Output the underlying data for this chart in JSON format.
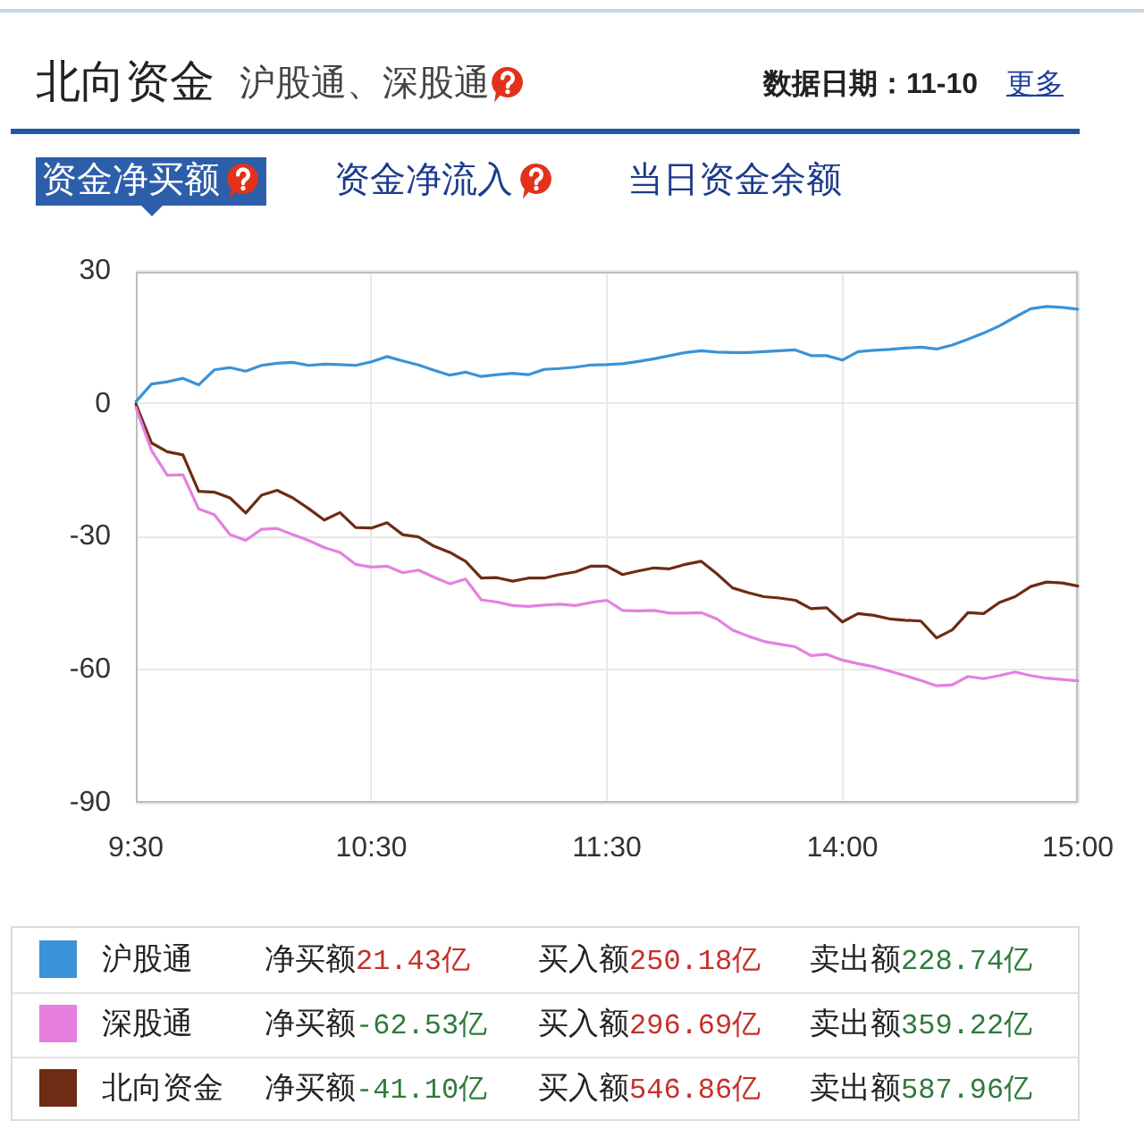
{
  "chart_data": {
    "type": "line",
    "title": "北向资金",
    "subtitle": "沪股通、深股通",
    "annotations": [
      "数据日期：11-10",
      "更多",
      "资金净买额",
      "资金净流入",
      "当日资金余额",
      "净买额21.43亿",
      "买入额250.18亿",
      "卖出额228.74亿",
      "净买额-62.53亿",
      "买入额296.69亿",
      "卖出额359.22亿",
      "净买额-41.10亿",
      "买入额546.86亿",
      "卖出额587.96亿"
    ],
    "categories": [
      "9:30",
      null,
      null,
      null,
      null,
      null,
      null,
      null,
      null,
      null,
      null,
      null,
      null,
      null,
      null,
      "10:30",
      null,
      null,
      null,
      null,
      null,
      null,
      null,
      null,
      null,
      null,
      null,
      null,
      null,
      null,
      "11:30",
      null,
      null,
      null,
      null,
      null,
      null,
      null,
      null,
      null,
      null,
      null,
      null,
      null,
      null,
      "14:00",
      null,
      null,
      null,
      null,
      null,
      null,
      null,
      null,
      null,
      null,
      null,
      null,
      null,
      null,
      "15:00"
    ],
    "ylim": [
      -90,
      30
    ],
    "yticks": [
      -90,
      -60,
      -30,
      0,
      30
    ],
    "grid": true,
    "legend": "bottom",
    "series": [
      {
        "name": "沪股通",
        "color": "#3a93d8",
        "values": [
          0.5,
          4.5,
          5.0,
          5.8,
          4.3,
          7.7,
          8.2,
          7.4,
          8.7,
          9.2,
          9.4,
          8.7,
          9.0,
          8.9,
          8.7,
          9.5,
          10.7,
          9.7,
          8.8,
          7.6,
          6.5,
          7.2,
          6.2,
          6.6,
          6.9,
          6.6,
          7.8,
          8.0,
          8.3,
          8.8,
          8.9,
          9.1,
          9.6,
          10.2,
          10.9,
          11.6,
          12.0,
          11.7,
          11.6,
          11.6,
          11.8,
          12.0,
          12.2,
          10.9,
          10.9,
          9.9,
          11.8,
          12.1,
          12.3,
          12.6,
          12.8,
          12.4,
          13.3,
          14.6,
          16.0,
          17.6,
          19.6,
          21.5,
          22.0,
          21.8,
          21.4
        ]
      },
      {
        "name": "深股通",
        "color": "#e67fe0",
        "values": [
          -0.8,
          -10.5,
          -16.1,
          -16.0,
          -23.7,
          -25.0,
          -29.5,
          -30.8,
          -28.3,
          -28.1,
          -29.5,
          -30.8,
          -32.4,
          -33.5,
          -36.2,
          -36.8,
          -36.6,
          -38.1,
          -37.5,
          -39.1,
          -40.6,
          -39.5,
          -44.2,
          -44.7,
          -45.5,
          -45.7,
          -45.4,
          -45.2,
          -45.5,
          -44.8,
          -44.3,
          -46.6,
          -46.7,
          -46.6,
          -47.2,
          -47.2,
          -47.1,
          -48.5,
          -51.0,
          -52.4,
          -53.6,
          -54.2,
          -54.8,
          -56.8,
          -56.5,
          -57.8,
          -58.6,
          -59.3,
          -60.3,
          -61.3,
          -62.4,
          -63.6,
          -63.4,
          -61.5,
          -62.0,
          -61.3,
          -60.5,
          -61.3,
          -61.9,
          -62.2,
          -62.5
        ]
      },
      {
        "name": "北向资金",
        "color": "#6e2c14",
        "values": [
          0,
          -8.8,
          -10.8,
          -11.5,
          -19.7,
          -19.9,
          -21.2,
          -24.6,
          -20.6,
          -19.5,
          -21.2,
          -23.6,
          -26.2,
          -24.5,
          -27.9,
          -28.0,
          -26.8,
          -29.5,
          -30.0,
          -32.1,
          -33.5,
          -35.5,
          -39.3,
          -39.2,
          -40.0,
          -39.3,
          -39.3,
          -38.5,
          -37.9,
          -36.6,
          -36.6,
          -38.5,
          -37.7,
          -37.0,
          -37.2,
          -36.2,
          -35.5,
          -38.3,
          -41.5,
          -42.6,
          -43.5,
          -43.8,
          -44.3,
          -46.2,
          -46.0,
          -49.2,
          -47.3,
          -47.7,
          -48.5,
          -48.8,
          -49.0,
          -52.8,
          -51.0,
          -47.1,
          -47.3,
          -44.8,
          -43.5,
          -41.2,
          -40.2,
          -40.4,
          -41.1
        ]
      }
    ]
  }
}
